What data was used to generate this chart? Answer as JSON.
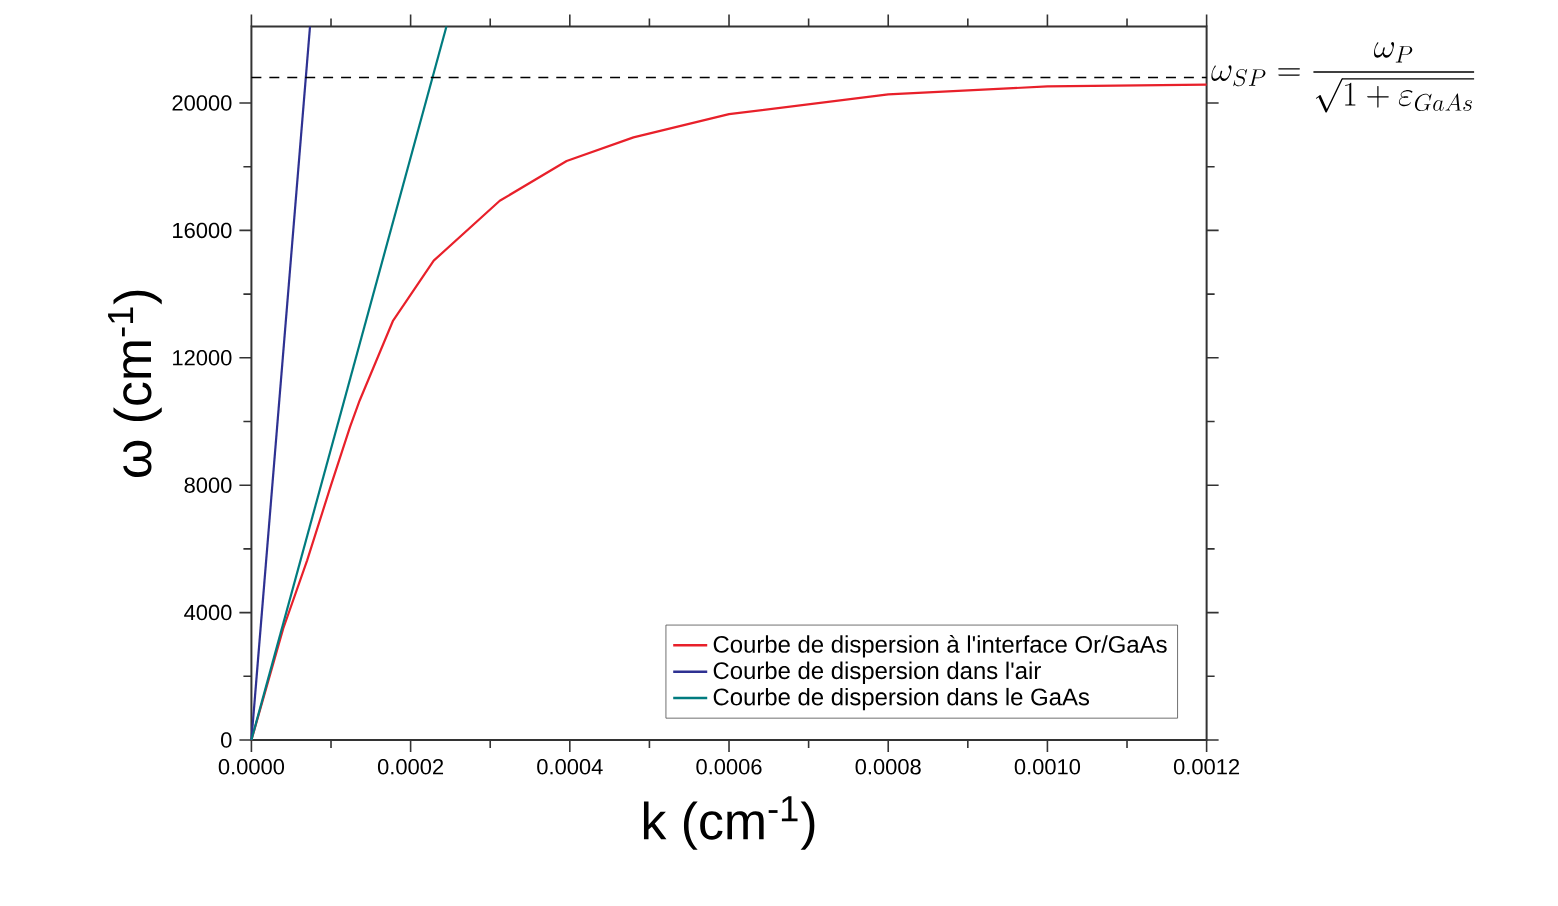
{
  "chart_data": {
    "type": "line",
    "xlabel": "k (cm$^{-1}$)",
    "ylabel": "ω (cm$^{-1}$)",
    "xlim": [
      0,
      0.0012
    ],
    "ylim": [
      0,
      22400
    ],
    "xticks": [
      {
        "value": 0,
        "label": "0.0000"
      },
      {
        "value": 0.0002,
        "label": "0.0002"
      },
      {
        "value": 0.0004,
        "label": "0.0004"
      },
      {
        "value": 0.0006,
        "label": "0.0006"
      },
      {
        "value": 0.0008,
        "label": "0.0008"
      },
      {
        "value": 0.001,
        "label": "0.0010"
      },
      {
        "value": 0.0012,
        "label": "0.0012"
      }
    ],
    "yticks": [
      0,
      4000,
      8000,
      12000,
      16000,
      20000
    ],
    "grid": false,
    "legend": "bottom right",
    "marker": "none",
    "line_style": "solid",
    "ref_lines": [
      {
        "axis": "y",
        "value": 20800,
        "label": "\\omega_{SP}=\\frac{\\omega_P}{\\sqrt{1+\\varepsilon_{GaAs}}}",
        "color": "#000000",
        "line_style": "dashed"
      }
    ],
    "series": [
      {
        "name": "Courbe de dispersion à l'interface Or/GaAs",
        "color": "#e8202a",
        "x": [
          0,
          4e-05,
          7e-05,
          0.0001,
          0.000124,
          0.000136,
          0.000178,
          0.000229,
          0.000312,
          0.000396,
          0.00048,
          0.0006,
          0.0008,
          0.001,
          0.0012
        ],
        "values": [
          0,
          3500,
          5640,
          8000,
          9840,
          10660,
          13170,
          15050,
          16930,
          18180,
          18920,
          19650,
          20270,
          20520,
          20580
        ]
      },
      {
        "name": "Courbe de dispersion dans l'air",
        "color": "#2e3192",
        "x": [
          0,
          7.36e-05
        ],
        "values": [
          0,
          22400
        ]
      },
      {
        "name": "Courbe de dispersion dans le GaAs",
        "color": "#007b7f",
        "x": [
          0,
          0.000245
        ],
        "values": [
          0,
          22400
        ]
      }
    ]
  }
}
